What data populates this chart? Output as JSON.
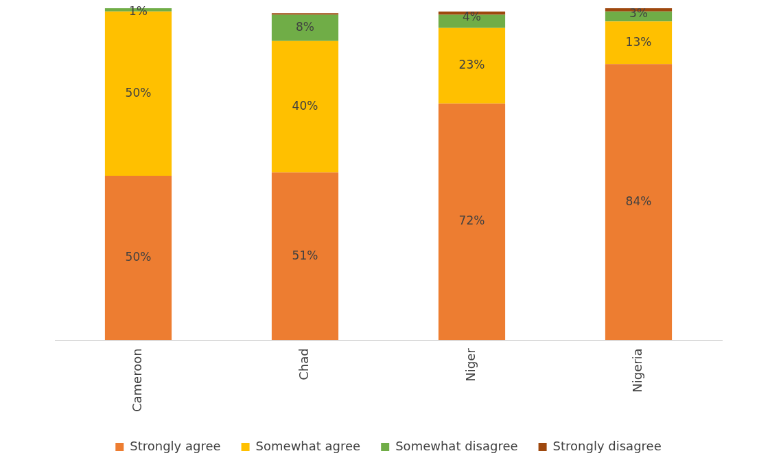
{
  "chart_data": {
    "type": "bar",
    "stacked": true,
    "categories": [
      "Cameroon",
      "Chad",
      "Niger",
      "Nigeria"
    ],
    "series": [
      {
        "name": "Strongly agree",
        "color": "#ed7d31",
        "values": [
          50,
          51,
          72,
          84
        ],
        "value_labels": [
          "50%",
          "51%",
          "72%",
          "84%"
        ]
      },
      {
        "name": "Somewhat agree",
        "color": "#ffc000",
        "values": [
          50,
          40,
          23,
          13
        ],
        "value_labels": [
          "50%",
          "40%",
          "23%",
          "13%"
        ]
      },
      {
        "name": "Somewhat disagree",
        "color": "#70ad47",
        "values": [
          1,
          8,
          4,
          3
        ],
        "value_labels": [
          "1%",
          "8%",
          "4%",
          "3%"
        ]
      },
      {
        "name": "Strongly disagree",
        "color": "#9e480e",
        "values": [
          0,
          0.5,
          1,
          1
        ]
      }
    ],
    "legend": "bottom",
    "grid": false
  }
}
